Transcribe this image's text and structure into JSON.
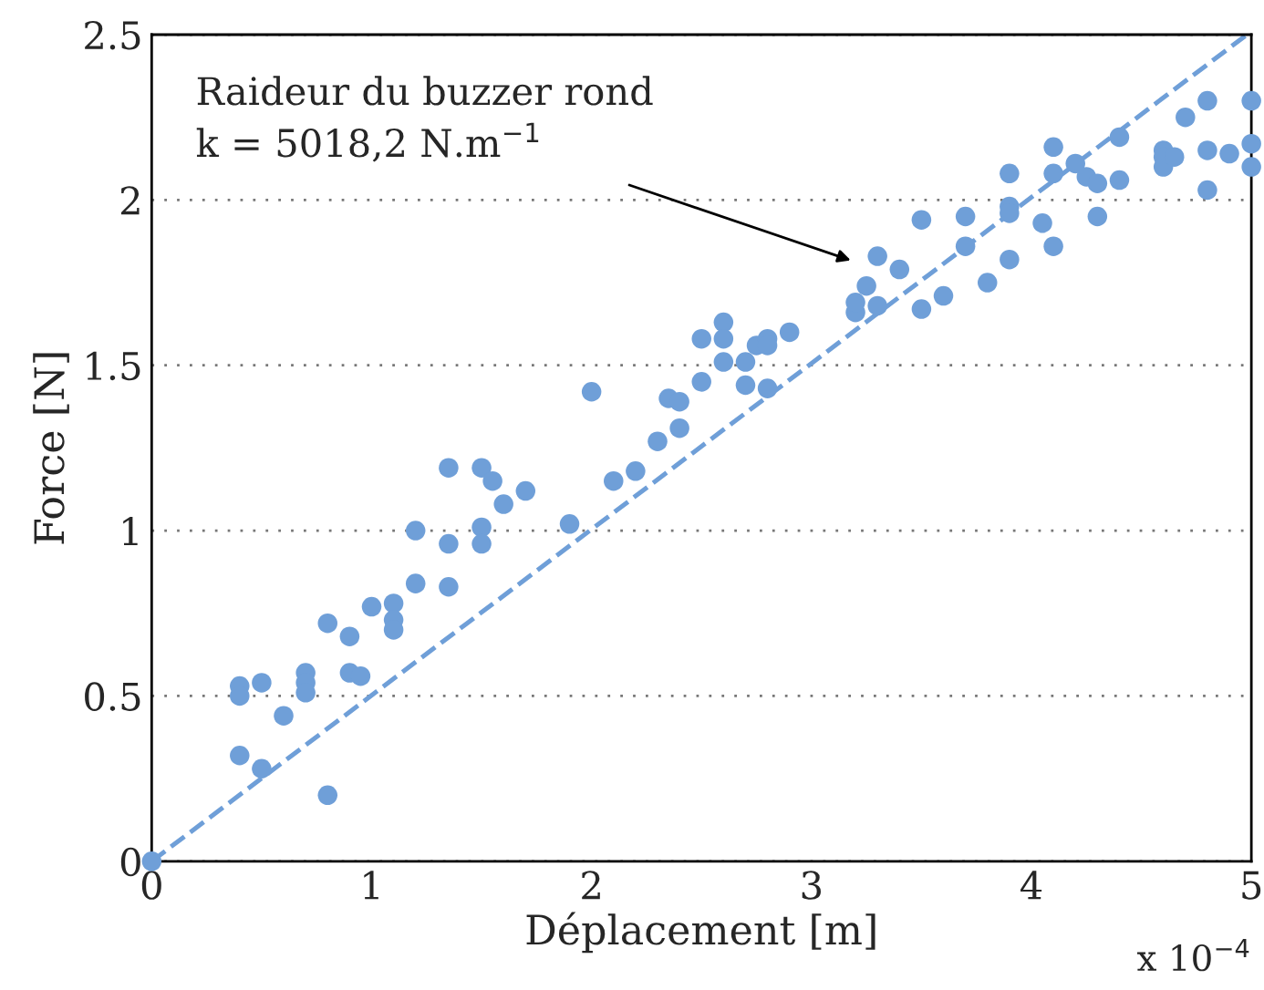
{
  "chart_data": {
    "type": "scatter",
    "xlabel": "Déplacement [m]",
    "ylabel": "Force [N]",
    "xlim": [
      0,
      5
    ],
    "ylim": [
      0,
      2.5
    ],
    "xticks": [
      0,
      1,
      2,
      3,
      4,
      5
    ],
    "yticks": [
      0,
      0.5,
      1,
      1.5,
      2,
      2.5
    ],
    "grid": "y",
    "annotations": [
      "Raideur du buzzer rond\nk = 5018,2 N.m$^{−1}$",
      "x 10$^{−4}$"
    ],
    "series": [
      {
        "marker": "circle",
        "color": "#6f9fd8",
        "x": [
          0,
          0.4,
          0.4,
          0.4,
          0.5,
          0.5,
          0.6,
          0.7,
          0.7,
          0.7,
          0.8,
          0.8,
          0.9,
          0.9,
          0.95,
          1.0,
          1.1,
          1.1,
          1.1,
          1.2,
          1.2,
          1.35,
          1.35,
          1.35,
          1.5,
          1.5,
          1.5,
          1.55,
          1.6,
          1.7,
          1.9,
          2.0,
          2.1,
          2.2,
          2.3,
          2.35,
          2.4,
          2.4,
          2.5,
          2.5,
          2.6,
          2.6,
          2.6,
          2.7,
          2.7,
          2.75,
          2.8,
          2.8,
          2.8,
          2.9,
          3.2,
          3.2,
          3.25,
          3.3,
          3.3,
          3.4,
          3.5,
          3.5,
          3.6,
          3.7,
          3.7,
          3.8,
          3.9,
          3.9,
          3.9,
          3.9,
          4.05,
          4.1,
          4.1,
          4.1,
          4.2,
          4.25,
          4.3,
          4.3,
          4.4,
          4.4,
          4.6,
          4.6,
          4.6,
          4.65,
          4.7,
          4.8,
          4.8,
          4.8,
          4.9,
          5.0,
          5.0,
          5.0
        ],
        "values": [
          0,
          0.53,
          0.5,
          0.32,
          0.54,
          0.28,
          0.44,
          0.57,
          0.54,
          0.51,
          0.72,
          0.2,
          0.68,
          0.57,
          0.56,
          0.77,
          0.78,
          0.73,
          0.7,
          1.0,
          0.84,
          1.19,
          0.96,
          0.83,
          1.19,
          1.01,
          0.96,
          1.15,
          1.08,
          1.12,
          1.02,
          1.42,
          1.15,
          1.18,
          1.27,
          1.4,
          1.39,
          1.31,
          1.45,
          1.58,
          1.63,
          1.58,
          1.51,
          1.51,
          1.44,
          1.56,
          1.58,
          1.56,
          1.43,
          1.6,
          1.66,
          1.69,
          1.74,
          1.83,
          1.68,
          1.79,
          1.94,
          1.67,
          1.71,
          1.95,
          1.86,
          1.75,
          2.08,
          1.98,
          1.96,
          1.82,
          1.93,
          2.16,
          2.08,
          1.86,
          2.11,
          2.07,
          2.05,
          1.95,
          2.19,
          2.06,
          2.15,
          2.13,
          2.1,
          2.13,
          2.25,
          2.3,
          2.15,
          2.03,
          2.14,
          2.3,
          2.17,
          2.1
        ]
      },
      {
        "type": "line",
        "color": "#6f9fd8",
        "line_style": "dashed",
        "x": [
          0,
          4.98
        ],
        "values": [
          0,
          2.5
        ]
      }
    ]
  }
}
